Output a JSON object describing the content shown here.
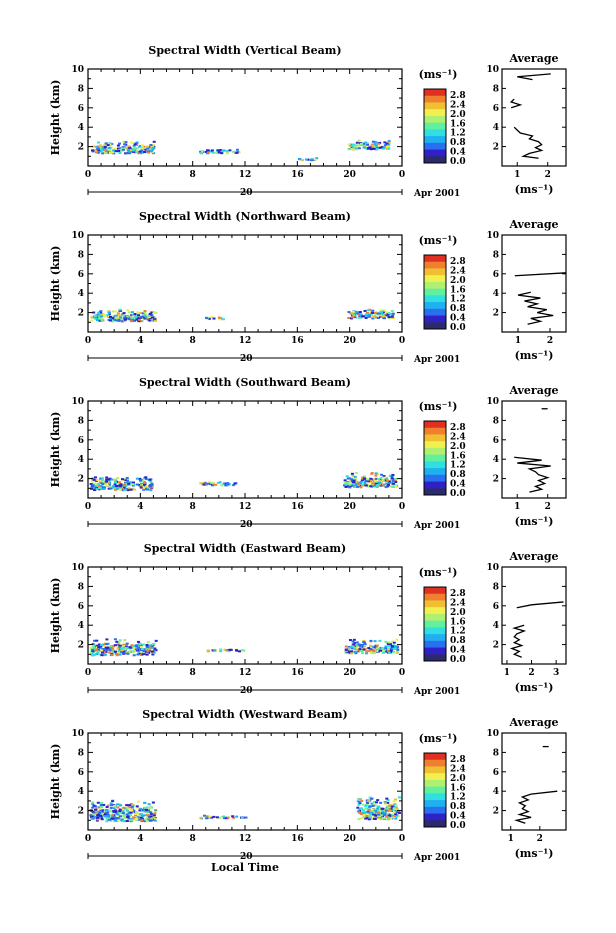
{
  "chart_data": [
    {
      "type": "heatmap",
      "title": "Spectral Width (Vertical Beam)",
      "ylabel": "Height (km)",
      "ylim": [
        0,
        10
      ],
      "xlim": [
        0,
        24
      ],
      "x_ticks": [
        "0",
        "4",
        "8",
        "12",
        "16",
        "20",
        "0"
      ],
      "y_ticks": [
        "2",
        "4",
        "6",
        "8",
        "10"
      ],
      "date_tick": "20",
      "date_label": "Apr 2001",
      "colorbar": {
        "unit": "(ms⁻¹)",
        "ticks": [
          "2.8",
          "2.4",
          "2.0",
          "1.6",
          "1.2",
          "0.8",
          "0.4",
          "0.0"
        ]
      },
      "profile": {
        "title": "Average",
        "xlabel": "(ms⁻¹)",
        "x_ticks": [
          "1",
          "2"
        ],
        "y_ticks": [
          "2",
          "4",
          "6",
          "8",
          "10"
        ],
        "xlim": [
          0.5,
          2.6
        ],
        "height": [
          0.8,
          1.0,
          1.3,
          1.6,
          1.9,
          2.2,
          2.5,
          2.8,
          3.1,
          3.4,
          3.7,
          4.0,
          6.0,
          6.3,
          6.6,
          6.9,
          8.9,
          9.2,
          9.5
        ],
        "value": [
          1.7,
          1.2,
          1.4,
          1.8,
          1.6,
          1.8,
          1.7,
          1.4,
          1.5,
          1.1,
          1.0,
          0.9,
          0.8,
          1.1,
          0.8,
          0.9,
          1.5,
          1.0,
          2.1
        ]
      },
      "blobs": [
        [
          0.2,
          1.4,
          4.8,
          1.3
        ],
        [
          8.5,
          1.4,
          3.0,
          0.5
        ],
        [
          19.8,
          1.8,
          3.2,
          1.0
        ],
        [
          16,
          0.7,
          1.5,
          0.3
        ]
      ]
    },
    {
      "type": "heatmap",
      "title": "Spectral Width (Northward Beam)",
      "ylabel": "Height (km)",
      "ylim": [
        0,
        10
      ],
      "xlim": [
        0,
        24
      ],
      "x_ticks": [
        "0",
        "4",
        "8",
        "12",
        "16",
        "20",
        "0"
      ],
      "y_ticks": [
        "2",
        "4",
        "6",
        "8",
        "10"
      ],
      "date_tick": "20",
      "date_label": "Apr 2001",
      "colorbar": {
        "unit": "(ms⁻¹)",
        "ticks": [
          "2.8",
          "2.4",
          "2.0",
          "1.6",
          "1.2",
          "0.8",
          "0.4",
          "0.0"
        ]
      },
      "profile": {
        "title": "Average",
        "xlabel": "(ms⁻¹)",
        "x_ticks": [
          "1",
          "2"
        ],
        "y_ticks": [
          "2",
          "4",
          "6",
          "8",
          "10"
        ],
        "xlim": [
          0.5,
          2.5
        ],
        "height": [
          0.8,
          1.1,
          1.4,
          1.7,
          2.0,
          2.3,
          2.6,
          2.9,
          3.2,
          3.5,
          3.8,
          4.1,
          5.8,
          6.1
        ],
        "value": [
          1.3,
          1.7,
          1.4,
          2.1,
          1.6,
          1.9,
          1.3,
          1.6,
          1.2,
          1.7,
          1.0,
          1.4,
          0.9,
          2.5
        ]
      },
      "blobs": [
        [
          0.1,
          1.2,
          5.0,
          1.3
        ],
        [
          8.8,
          1.4,
          1.5,
          0.3
        ],
        [
          19.8,
          1.5,
          3.5,
          1.0
        ]
      ]
    },
    {
      "type": "heatmap",
      "title": "Spectral Width (Southward Beam)",
      "ylabel": "Height (km)",
      "ylim": [
        0,
        10
      ],
      "xlim": [
        0,
        24
      ],
      "x_ticks": [
        "0",
        "4",
        "8",
        "12",
        "16",
        "20",
        "0"
      ],
      "y_ticks": [
        "2",
        "4",
        "6",
        "8",
        "10"
      ],
      "date_tick": "20",
      "date_label": "Apr 2001",
      "colorbar": {
        "unit": "(ms⁻¹)",
        "ticks": [
          "2.8",
          "2.4",
          "2.0",
          "1.6",
          "1.2",
          "0.8",
          "0.4",
          "0.0"
        ]
      },
      "profile": {
        "title": "Average",
        "xlabel": "(ms⁻¹)",
        "x_ticks": [
          "1",
          "2"
        ],
        "y_ticks": [
          "2",
          "4",
          "6",
          "8",
          "10"
        ],
        "xlim": [
          0.5,
          2.6
        ],
        "height": [
          0.6,
          0.9,
          1.2,
          1.5,
          1.8,
          2.1,
          2.4,
          2.7,
          3.0,
          3.3,
          3.6,
          3.9,
          4.2,
          9.2
        ],
        "value": [
          1.4,
          1.8,
          1.6,
          1.9,
          1.7,
          2.0,
          1.7,
          1.6,
          1.4,
          2.1,
          1.0,
          1.8,
          0.9,
          1.8
        ]
      },
      "blobs": [
        [
          0.1,
          0.9,
          4.8,
          1.5
        ],
        [
          8.5,
          1.4,
          2.8,
          0.4
        ],
        [
          19.5,
          1.2,
          4.0,
          1.6
        ]
      ]
    },
    {
      "type": "heatmap",
      "title": "Spectral Width (Eastward Beam)",
      "ylabel": "Height (km)",
      "ylim": [
        0,
        10
      ],
      "xlim": [
        0,
        24
      ],
      "x_ticks": [
        "0",
        "4",
        "8",
        "12",
        "16",
        "20",
        "0"
      ],
      "y_ticks": [
        "2",
        "4",
        "6",
        "8",
        "10"
      ],
      "date_tick": "20",
      "date_label": "Apr 2001",
      "colorbar": {
        "unit": "(ms⁻¹)",
        "ticks": [
          "2.8",
          "2.4",
          "2.0",
          "1.6",
          "1.2",
          "0.8",
          "0.4",
          "0.0"
        ]
      },
      "profile": {
        "title": "Average",
        "xlabel": "(ms⁻¹)",
        "x_ticks": [
          "1",
          "2",
          "3"
        ],
        "y_ticks": [
          "2",
          "4",
          "6",
          "8",
          "10"
        ],
        "xlim": [
          0.8,
          3.4
        ],
        "height": [
          0.7,
          1.0,
          1.3,
          1.6,
          1.9,
          2.2,
          2.5,
          2.8,
          3.1,
          3.4,
          3.7,
          4.0,
          5.8,
          6.1,
          6.4
        ],
        "value": [
          1.6,
          1.3,
          1.5,
          1.2,
          1.6,
          1.3,
          1.5,
          1.3,
          1.4,
          1.7,
          1.3,
          1.7,
          1.4,
          2.0,
          3.3
        ]
      },
      "blobs": [
        [
          0.1,
          1.0,
          5.0,
          1.8
        ],
        [
          9,
          1.4,
          3.0,
          0.3
        ],
        [
          19.6,
          1.2,
          4.0,
          1.5
        ]
      ]
    },
    {
      "type": "heatmap",
      "title": "Spectral Width (Westward Beam)",
      "ylabel": "Height (km)",
      "ylim": [
        0,
        10
      ],
      "xlim": [
        0,
        24
      ],
      "x_ticks": [
        "0",
        "4",
        "8",
        "12",
        "16",
        "20",
        "0"
      ],
      "y_ticks": [
        "2",
        "4",
        "6",
        "8",
        "10"
      ],
      "date_tick": "20",
      "date_label": "Apr 2001",
      "xlabel": "Local Time",
      "colorbar": {
        "unit": "(ms⁻¹)",
        "ticks": [
          "2.8",
          "2.4",
          "2.0",
          "1.6",
          "1.2",
          "0.8",
          "0.4",
          "0.0"
        ]
      },
      "profile": {
        "title": "Average",
        "xlabel": "(ms⁻¹)",
        "x_ticks": [
          "1",
          "2"
        ],
        "y_ticks": [
          "2",
          "4",
          "6",
          "8",
          "10"
        ],
        "xlim": [
          0.7,
          2.9
        ],
        "height": [
          0.7,
          1.0,
          1.3,
          1.6,
          1.9,
          2.2,
          2.5,
          2.8,
          3.1,
          3.4,
          3.7,
          4.0,
          8.6
        ],
        "value": [
          1.5,
          1.2,
          1.7,
          1.3,
          1.6,
          1.4,
          1.5,
          1.3,
          1.6,
          1.4,
          1.7,
          2.6,
          2.1
        ]
      },
      "blobs": [
        [
          0.1,
          1.0,
          5.0,
          2.2
        ],
        [
          8.5,
          1.3,
          3.5,
          0.3
        ],
        [
          20.5,
          1.2,
          3.2,
          2.4
        ]
      ]
    }
  ]
}
